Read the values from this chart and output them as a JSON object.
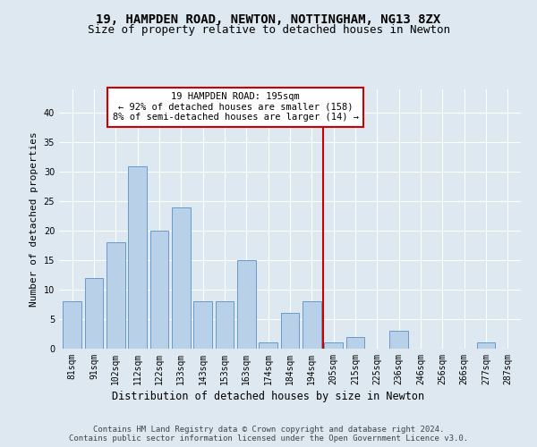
{
  "title1": "19, HAMPDEN ROAD, NEWTON, NOTTINGHAM, NG13 8ZX",
  "title2": "Size of property relative to detached houses in Newton",
  "xlabel": "Distribution of detached houses by size in Newton",
  "ylabel": "Number of detached properties",
  "categories": [
    "81sqm",
    "91sqm",
    "102sqm",
    "112sqm",
    "122sqm",
    "133sqm",
    "143sqm",
    "153sqm",
    "163sqm",
    "174sqm",
    "184sqm",
    "194sqm",
    "205sqm",
    "215sqm",
    "225sqm",
    "236sqm",
    "246sqm",
    "256sqm",
    "266sqm",
    "277sqm",
    "287sqm"
  ],
  "values": [
    8,
    12,
    18,
    31,
    20,
    24,
    8,
    8,
    15,
    1,
    6,
    8,
    1,
    2,
    0,
    3,
    0,
    0,
    0,
    1,
    0
  ],
  "bar_color": "#b8d0e8",
  "bar_edge_color": "#6699cc",
  "vline_x_index": 11.5,
  "vline_color": "#cc0000",
  "annotation_text": "19 HAMPDEN ROAD: 195sqm\n← 92% of detached houses are smaller (158)\n8% of semi-detached houses are larger (14) →",
  "annotation_box_color": "#cc0000",
  "ylim": [
    0,
    44
  ],
  "yticks": [
    0,
    5,
    10,
    15,
    20,
    25,
    30,
    35,
    40
  ],
  "bg_color": "#dde8f0",
  "plot_bg_color": "#dde8f0",
  "footer_text": "Contains HM Land Registry data © Crown copyright and database right 2024.\nContains public sector information licensed under the Open Government Licence v3.0.",
  "title1_fontsize": 10,
  "title2_fontsize": 9,
  "xlabel_fontsize": 8.5,
  "ylabel_fontsize": 8,
  "tick_fontsize": 7,
  "annot_fontsize": 7.5,
  "footer_fontsize": 6.5
}
